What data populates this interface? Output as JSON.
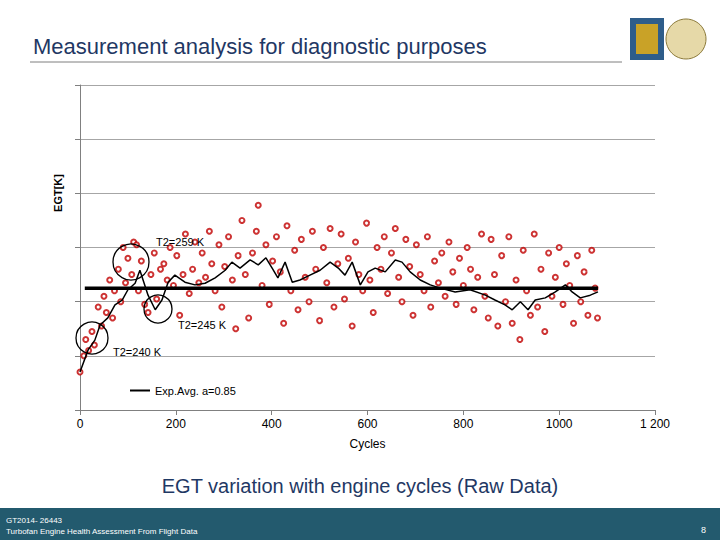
{
  "slide": {
    "title": "Measurement analysis for diagnostic purposes",
    "caption": "EGT variation with engine cycles (Raw Data)",
    "footer": {
      "reference": "GT2014- 26443",
      "subtitle": "Turbofan Engine Health Assessment From Flight Data",
      "page": "8"
    }
  },
  "chart_data": {
    "type": "scatter",
    "x_label": "Cycles",
    "y_label": "EGT[K]",
    "xlim": [
      0,
      1200
    ],
    "xticks": [
      0,
      200,
      400,
      600,
      800,
      1000,
      {
        "value": 1200,
        "label": "1 200"
      }
    ],
    "ylim": [
      0,
      6
    ],
    "yticks": [
      0,
      1,
      2,
      3,
      4,
      5,
      6
    ],
    "tick_labels": "x",
    "grid": true,
    "legend": "bottom-left",
    "annotations": [
      {
        "text": "T2=259 K"
      },
      {
        "text": "T2=245 K"
      },
      {
        "text": "T2=240 K"
      }
    ],
    "series": [
      {
        "type": "scatter",
        "color": "#c00000",
        "marker": "circle_open",
        "x": [
          0,
          8,
          12,
          18,
          25,
          30,
          38,
          45,
          50,
          55,
          62,
          68,
          72,
          80,
          85,
          90,
          95,
          100,
          108,
          112,
          118,
          122,
          128,
          135,
          142,
          148,
          155,
          160,
          168,
          175,
          182,
          188,
          195,
          202,
          208,
          215,
          220,
          228,
          235,
          240,
          248,
          255,
          262,
          270,
          275,
          282,
          290,
          296,
          302,
          310,
          318,
          325,
          330,
          338,
          345,
          352,
          360,
          368,
          372,
          380,
          388,
          395,
          402,
          410,
          418,
          425,
          432,
          440,
          448,
          455,
          462,
          470,
          478,
          485,
          492,
          500,
          508,
          515,
          522,
          530,
          538,
          545,
          552,
          560,
          568,
          575,
          582,
          590,
          598,
          605,
          612,
          620,
          628,
          635,
          642,
          650,
          658,
          665,
          672,
          680,
          688,
          695,
          702,
          710,
          718,
          725,
          732,
          740,
          748,
          755,
          762,
          770,
          778,
          785,
          792,
          800,
          808,
          815,
          822,
          830,
          838,
          845,
          852,
          858,
          865,
          872,
          880,
          888,
          895,
          902,
          910,
          918,
          925,
          932,
          940,
          948,
          955,
          962,
          970,
          978,
          985,
          992,
          1000,
          1008,
          1015,
          1022,
          1030,
          1038,
          1045,
          1052,
          1060,
          1068,
          1075,
          1080
        ],
        "values": [
          0.7,
          1.0,
          1.3,
          1.1,
          1.45,
          1.2,
          1.9,
          1.55,
          2.1,
          1.8,
          2.4,
          1.7,
          2.2,
          2.6,
          2.0,
          3.0,
          2.35,
          2.8,
          2.5,
          3.1,
          3.05,
          2.2,
          2.75,
          1.95,
          1.8,
          2.5,
          2.9,
          2.05,
          2.6,
          2.7,
          2.4,
          3.0,
          2.3,
          2.85,
          1.75,
          2.5,
          3.25,
          2.15,
          2.6,
          3.1,
          2.35,
          2.9,
          2.45,
          3.3,
          2.7,
          2.2,
          3.05,
          1.9,
          2.65,
          3.2,
          2.4,
          1.5,
          2.85,
          3.5,
          2.5,
          1.7,
          2.9,
          3.3,
          3.78,
          2.3,
          3.05,
          1.95,
          2.75,
          3.2,
          2.55,
          1.6,
          3.4,
          2.2,
          2.95,
          1.85,
          3.15,
          2.45,
          2.0,
          3.3,
          2.6,
          1.65,
          3.0,
          2.35,
          3.35,
          1.9,
          2.7,
          3.25,
          2.05,
          2.8,
          1.55,
          3.1,
          2.5,
          2.2,
          3.45,
          2.4,
          1.8,
          3.0,
          2.6,
          3.2,
          2.15,
          2.9,
          3.35,
          2.45,
          2.0,
          3.15,
          2.65,
          1.75,
          3.05,
          2.5,
          2.2,
          3.2,
          1.9,
          2.75,
          2.35,
          2.9,
          2.1,
          3.1,
          2.55,
          1.95,
          2.8,
          2.3,
          3.0,
          2.6,
          1.85,
          2.45,
          3.25,
          2.1,
          1.7,
          3.15,
          2.5,
          1.55,
          2.85,
          2.0,
          3.2,
          1.6,
          2.4,
          1.3,
          2.95,
          2.2,
          1.75,
          3.25,
          1.9,
          2.6,
          1.45,
          2.9,
          2.1,
          2.45,
          3.0,
          1.95,
          2.7,
          2.3,
          1.6,
          2.85,
          2.0,
          2.55,
          1.75,
          2.95,
          2.25,
          1.7
        ]
      },
      {
        "type": "line",
        "name": "Exp.Avg. a=0.85",
        "color": "#000000",
        "line_style": "solid",
        "x": [
          0,
          17,
          31,
          42,
          58,
          73,
          88,
          100,
          115,
          125,
          142,
          157,
          171,
          184,
          198,
          219,
          240,
          261,
          282,
          303,
          317,
          334,
          355,
          372,
          388,
          401,
          413,
          428,
          443,
          459,
          480,
          501,
          522,
          539,
          553,
          568,
          585,
          601,
          616,
          637,
          658,
          672,
          689,
          710,
          731,
          752,
          783,
          814,
          846,
          866,
          887,
          902,
          919,
          935,
          950,
          971,
          992,
          1013,
          1027,
          1044,
          1065,
          1081
        ],
        "values": [
          0.7,
          1.11,
          1.29,
          1.57,
          1.7,
          1.94,
          2.03,
          2.22,
          2.34,
          2.58,
          2.12,
          1.85,
          2.03,
          2.36,
          2.49,
          2.36,
          2.31,
          2.34,
          2.44,
          2.58,
          2.73,
          2.62,
          2.77,
          2.68,
          2.81,
          2.62,
          2.44,
          2.73,
          2.36,
          2.4,
          2.49,
          2.58,
          2.73,
          2.62,
          2.49,
          2.73,
          2.31,
          2.55,
          2.62,
          2.55,
          2.77,
          2.73,
          2.55,
          2.4,
          2.31,
          2.25,
          2.18,
          2.22,
          2.12,
          2.03,
          1.94,
          1.85,
          2.0,
          1.85,
          2.03,
          2.07,
          2.18,
          2.31,
          2.18,
          2.07,
          2.12,
          2.18
        ]
      },
      {
        "type": "line",
        "color": "#000000",
        "line_style": "bold",
        "x": [
          10,
          1081
        ],
        "values": [
          2.25,
          2.25
        ]
      }
    ]
  }
}
